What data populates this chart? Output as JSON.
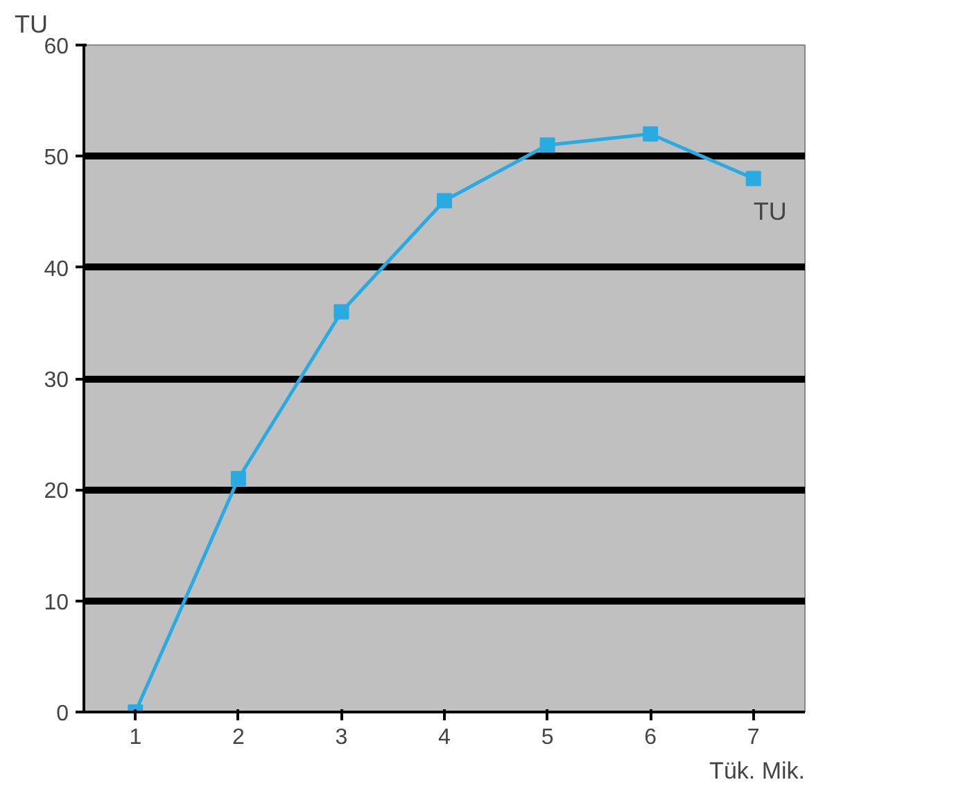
{
  "chart_data": {
    "type": "line",
    "ylabel": "TU",
    "xlabel": "Tük. Mik.",
    "categories": [
      "1",
      "2",
      "3",
      "4",
      "5",
      "6",
      "7"
    ],
    "series": [
      {
        "name": "TU",
        "color": "#29abe2",
        "values": [
          0,
          21,
          36,
          46,
          51,
          52,
          48
        ]
      }
    ],
    "ylim": [
      0,
      60
    ],
    "yticks": [
      0,
      10,
      20,
      30,
      40,
      50,
      60
    ],
    "grid": "y",
    "marker": "square"
  }
}
